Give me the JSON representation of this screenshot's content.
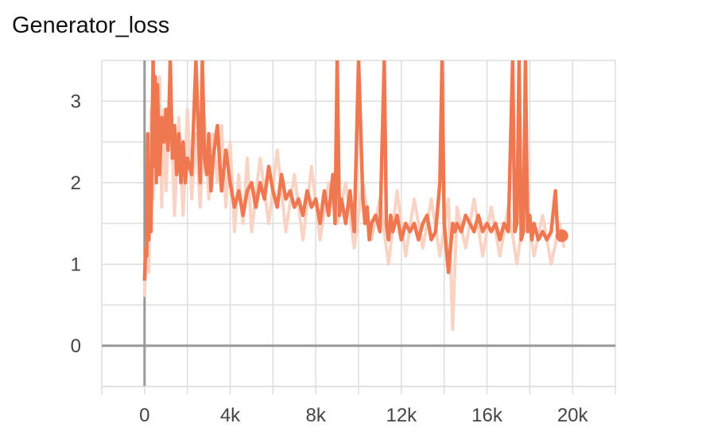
{
  "chart_data": {
    "type": "line",
    "title": "Generator_loss",
    "xlabel": "",
    "ylabel": "",
    "xlim": [
      -2000,
      22000
    ],
    "ylim": [
      -0.5,
      3.5
    ],
    "x_ticks": [
      0,
      4000,
      8000,
      12000,
      16000,
      20000
    ],
    "x_tick_labels": [
      "0",
      "4k",
      "8k",
      "12k",
      "16k",
      "20k"
    ],
    "y_ticks": [
      0,
      1,
      2,
      3
    ],
    "y_tick_labels": [
      "0",
      "1",
      "2",
      "3"
    ],
    "grid": true,
    "legend": "none",
    "colors": {
      "line": "#f07850",
      "raw": "#f9d3c4",
      "grid": "#dddddd",
      "axis": "#999999"
    },
    "series": [
      {
        "style": "raw",
        "x": [
          0,
          100,
          200,
          300,
          400,
          500,
          600,
          700,
          800,
          900,
          1000,
          1200,
          1400,
          1600,
          1800,
          2000,
          2200,
          2400,
          2600,
          2800,
          3000,
          3200,
          3400,
          3600,
          3800,
          4000,
          4200,
          4400,
          4600,
          4800,
          5000,
          5400,
          5800,
          6200,
          6600,
          7000,
          7400,
          7800,
          8200,
          8600,
          9000,
          9400,
          9800,
          10200,
          10600,
          11000,
          11400,
          11800,
          12200,
          12600,
          13000,
          13400,
          13800,
          14200,
          14400,
          14600,
          15000,
          15400,
          15800,
          16200,
          16600,
          17000,
          17400,
          17800,
          18200,
          18600,
          19000,
          19400,
          19600
        ],
        "y": [
          0.6,
          1.3,
          0.9,
          2.9,
          1.8,
          3.0,
          2.2,
          3.3,
          1.7,
          2.9,
          1.9,
          3.2,
          1.6,
          2.8,
          1.6,
          2.9,
          1.8,
          2.6,
          1.7,
          2.8,
          1.8,
          2.6,
          2.0,
          2.7,
          1.7,
          2.5,
          1.4,
          2.1,
          1.5,
          2.3,
          1.4,
          2.3,
          1.5,
          2.4,
          1.4,
          2.1,
          1.3,
          2.2,
          1.3,
          2.0,
          1.5,
          2.0,
          1.2,
          2.0,
          1.3,
          1.8,
          1.0,
          1.9,
          1.1,
          1.8,
          1.2,
          1.8,
          1.1,
          1.8,
          0.2,
          1.7,
          1.2,
          1.8,
          1.1,
          1.7,
          1.1,
          1.7,
          1.0,
          1.8,
          1.1,
          1.6,
          1.0,
          1.5,
          1.2
        ]
      },
      {
        "style": "smoothed",
        "x": [
          0,
          50,
          100,
          150,
          200,
          250,
          300,
          350,
          400,
          450,
          500,
          550,
          600,
          700,
          800,
          900,
          1000,
          1100,
          1200,
          1300,
          1400,
          1500,
          1600,
          1700,
          1800,
          1900,
          2000,
          2200,
          2400,
          2600,
          2700,
          2800,
          2900,
          3000,
          3100,
          3200,
          3400,
          3600,
          3800,
          4000,
          4200,
          4400,
          4600,
          4800,
          5000,
          5200,
          5400,
          5600,
          5800,
          6000,
          6200,
          6400,
          6600,
          6800,
          7000,
          7200,
          7400,
          7600,
          7800,
          8000,
          8200,
          8400,
          8600,
          8800,
          8900,
          9000,
          9100,
          9200,
          9400,
          9600,
          9800,
          10000,
          10200,
          10300,
          10400,
          10500,
          10600,
          10800,
          11000,
          11200,
          11300,
          11400,
          11500,
          11600,
          11800,
          12000,
          12200,
          12400,
          12600,
          12800,
          13000,
          13200,
          13400,
          13600,
          13800,
          13900,
          14000,
          14100,
          14200,
          14400,
          14500,
          14600,
          14800,
          15000,
          15200,
          15400,
          15600,
          15800,
          16000,
          16200,
          16400,
          16600,
          16800,
          17000,
          17200,
          17300,
          17400,
          17500,
          17600,
          17700,
          17800,
          17900,
          18000,
          18100,
          18200,
          18400,
          18600,
          18800,
          19000,
          19200,
          19300,
          19400,
          19500
        ],
        "y": [
          0.8,
          1.2,
          1.1,
          2.6,
          1.3,
          2.2,
          1.4,
          2.6,
          3.5,
          2.2,
          3.3,
          2.0,
          3.2,
          2.1,
          2.8,
          2.5,
          2.9,
          2.4,
          3.5,
          2.3,
          2.7,
          2.1,
          2.6,
          2.0,
          2.5,
          2.0,
          2.3,
          2.1,
          3.5,
          2.0,
          3.5,
          2.3,
          2.1,
          2.6,
          1.9,
          2.3,
          2.7,
          1.9,
          2.4,
          2.0,
          1.7,
          1.9,
          1.6,
          1.9,
          2.0,
          1.7,
          2.0,
          1.8,
          2.2,
          1.9,
          1.7,
          2.1,
          1.8,
          1.9,
          1.7,
          1.8,
          1.6,
          1.9,
          1.7,
          1.8,
          1.5,
          1.9,
          1.6,
          2.1,
          1.5,
          3.5,
          1.6,
          1.8,
          1.5,
          1.9,
          1.4,
          3.5,
          1.8,
          1.5,
          1.7,
          1.3,
          1.5,
          1.6,
          1.4,
          3.5,
          1.5,
          1.3,
          1.6,
          1.4,
          1.6,
          1.3,
          1.5,
          1.4,
          1.5,
          1.3,
          1.5,
          1.6,
          1.3,
          1.4,
          2.0,
          3.5,
          1.5,
          1.2,
          0.9,
          1.5,
          1.4,
          1.5,
          1.4,
          1.6,
          1.5,
          1.4,
          1.6,
          1.4,
          1.5,
          1.4,
          1.5,
          1.3,
          1.5,
          1.4,
          3.5,
          1.4,
          1.5,
          3.5,
          1.3,
          1.4,
          3.5,
          1.4,
          1.6,
          1.3,
          1.5,
          1.3,
          1.4,
          1.3,
          1.4,
          1.9,
          1.4,
          1.3,
          1.35
        ]
      }
    ]
  }
}
